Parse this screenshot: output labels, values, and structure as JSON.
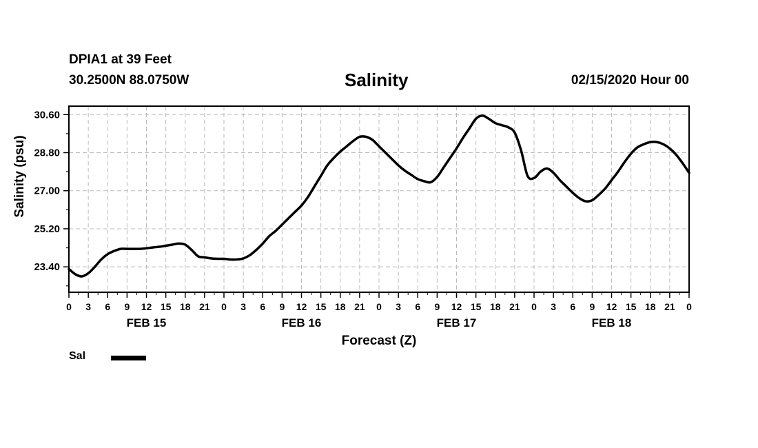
{
  "header": {
    "station": "DPIA1 at 39 Feet",
    "coords": "30.2500N 88.0750W",
    "title": "Salinity",
    "datetime": "02/15/2020 Hour 00"
  },
  "legend": {
    "series_label": "Sal"
  },
  "chart_data": {
    "type": "line",
    "title": "Salinity",
    "xlabel": "Forecast (Z)",
    "ylabel": "Salinity (psu)",
    "ylim": [
      22.2,
      31.0
    ],
    "xlim": [
      0,
      96
    ],
    "grid": true,
    "yticks": [
      23.4,
      25.2,
      27.0,
      28.8,
      30.6
    ],
    "ytick_labels": [
      "23.40",
      "25.20",
      "27.00",
      "28.80",
      "30.60"
    ],
    "xtick_hours": [
      0,
      3,
      6,
      9,
      12,
      15,
      18,
      21,
      24,
      27,
      30,
      33,
      36,
      39,
      42,
      45,
      48,
      51,
      54,
      57,
      60,
      63,
      66,
      69,
      72,
      75,
      78,
      81,
      84,
      87,
      90,
      93,
      96
    ],
    "xtick_labels": [
      "0",
      "3",
      "6",
      "9",
      "12",
      "15",
      "18",
      "21",
      "0",
      "3",
      "6",
      "9",
      "12",
      "15",
      "18",
      "21",
      "0",
      "3",
      "6",
      "9",
      "12",
      "15",
      "18",
      "21",
      "0",
      "3",
      "6",
      "9",
      "12",
      "15",
      "18",
      "21",
      "0"
    ],
    "day_labels": [
      {
        "hour": 12,
        "label": "FEB 15"
      },
      {
        "hour": 36,
        "label": "FEB 16"
      },
      {
        "hour": 60,
        "label": "FEB 17"
      },
      {
        "hour": 84,
        "label": "FEB 18"
      }
    ],
    "series": [
      {
        "name": "Sal",
        "color": "#000000",
        "x": [
          0,
          1,
          2,
          3,
          4,
          5,
          6,
          7,
          8,
          9,
          10,
          11,
          12,
          13,
          14,
          15,
          16,
          17,
          18,
          19,
          20,
          21,
          22,
          23,
          24,
          25,
          26,
          27,
          28,
          29,
          30,
          31,
          32,
          33,
          34,
          35,
          36,
          37,
          38,
          39,
          40,
          41,
          42,
          43,
          44,
          45,
          46,
          47,
          48,
          49,
          50,
          51,
          52,
          53,
          54,
          55,
          56,
          57,
          58,
          59,
          60,
          61,
          62,
          63,
          64,
          65,
          66,
          67,
          68,
          69,
          70,
          71,
          72,
          73,
          74,
          75,
          76,
          77,
          78,
          79,
          80,
          81,
          82,
          83,
          84,
          85,
          86,
          87,
          88,
          89,
          90,
          91,
          92,
          93,
          94,
          95,
          96
        ],
        "values": [
          23.3,
          23.05,
          22.95,
          23.1,
          23.4,
          23.75,
          24.0,
          24.15,
          24.25,
          24.25,
          24.25,
          24.25,
          24.28,
          24.32,
          24.35,
          24.4,
          24.45,
          24.5,
          24.45,
          24.2,
          23.9,
          23.85,
          23.8,
          23.78,
          23.78,
          23.75,
          23.75,
          23.8,
          23.95,
          24.2,
          24.5,
          24.85,
          25.1,
          25.4,
          25.7,
          26.0,
          26.3,
          26.7,
          27.2,
          27.7,
          28.2,
          28.55,
          28.85,
          29.1,
          29.35,
          29.55,
          29.55,
          29.4,
          29.1,
          28.8,
          28.5,
          28.2,
          27.95,
          27.75,
          27.55,
          27.45,
          27.4,
          27.65,
          28.1,
          28.55,
          29.0,
          29.5,
          29.95,
          30.4,
          30.55,
          30.4,
          30.2,
          30.1,
          30.0,
          29.75,
          28.9,
          27.7,
          27.6,
          27.9,
          28.05,
          27.85,
          27.5,
          27.2,
          26.9,
          26.65,
          26.5,
          26.55,
          26.8,
          27.1,
          27.5,
          27.9,
          28.35,
          28.75,
          29.05,
          29.2,
          29.3,
          29.3,
          29.2,
          29.0,
          28.7,
          28.3,
          27.85
        ]
      }
    ]
  }
}
